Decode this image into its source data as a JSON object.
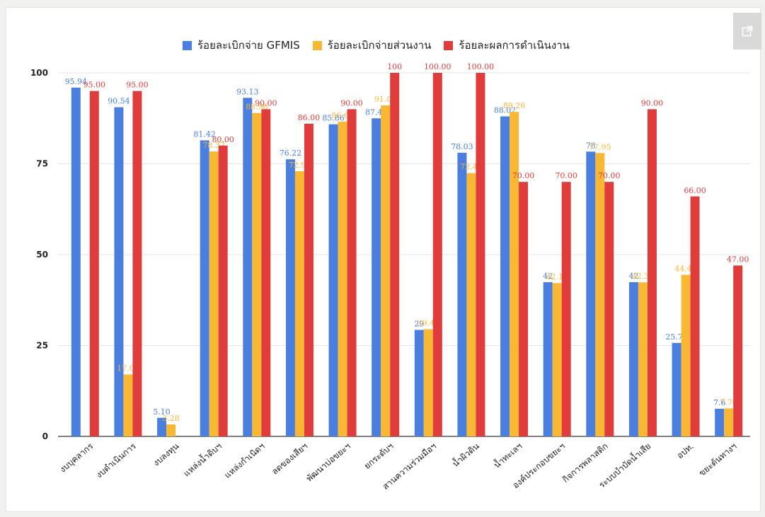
{
  "chart_data": {
    "type": "bar",
    "categories": [
      "งบบุคลากร",
      "งบดำเนินการ",
      "งบลงทุน",
      "แหล่งน้ำดิบฯ",
      "แหล่งกำเนิดฯ",
      "ลดของเสียฯ",
      "พัฒนาบ่อขยะฯ",
      "ยกระดับฯ",
      "สานความร่วมมือฯ",
      "น้ำผิวดิน",
      "น้ำทะเลฯ",
      "องค์ประกอบขยะฯ",
      "กิจการพลาสติก",
      "ระบบบำบัดน้ำเสีย",
      "อปท.",
      "ขยะต้นทางฯ"
    ],
    "series": [
      {
        "name": "ร้อยละเบิกจ่าย GFMIS",
        "color": "#4a7fe0",
        "values": [
          95.94,
          90.54,
          5.1,
          81.42,
          93.13,
          76.22,
          85.86,
          87.49,
          29.29,
          78.03,
          88.02,
          42.42,
          78.33,
          42.42,
          25.71,
          7.6
        ],
        "labels": [
          "95.94",
          "90.54",
          "5.10",
          "81.42",
          "93.13",
          "76.22",
          "85.86",
          "87.49",
          "29",
          "78.03",
          "88.02",
          "42",
          "78",
          "42",
          "25.71",
          "7.6"
        ]
      },
      {
        "name": "ร้อยละเบิกจ่ายส่วนงาน",
        "color": "#f8b834",
        "values": [
          null,
          17.04,
          3.28,
          78.37,
          88.96,
          72.94,
          86.6,
          91.05,
          29.49,
          72.43,
          89.26,
          42.17,
          77.95,
          42.38,
          44.44,
          7.7
        ],
        "labels": [
          "",
          "17.04",
          "3.28",
          "78.37",
          "88.96",
          "72.94",
          "86.60",
          "91.05",
          "29.49",
          "72.43",
          "89.26",
          "42.17",
          "77.95",
          "42.38",
          "44.44",
          "7.70"
        ]
      },
      {
        "name": "ร้อยละผลการดำเนินงาน",
        "color": "#e03c3c",
        "values": [
          95.0,
          95.0,
          null,
          80.0,
          90.0,
          86.0,
          90.0,
          100.0,
          100.0,
          100.0,
          70.0,
          70.0,
          70.0,
          90.0,
          66.0,
          47.0
        ],
        "labels": [
          "95.00",
          "95.00",
          "",
          "80.00",
          "90.00",
          "86.00",
          "90.00",
          "100",
          "100.00",
          "100.00",
          "70.00",
          "70.00",
          "70.00",
          "90.00",
          "66.00",
          "47.00"
        ]
      }
    ],
    "yticks": [
      0,
      25,
      50,
      75,
      100
    ],
    "ylim": [
      0,
      100
    ],
    "legend_position": "top-center",
    "grid": true
  },
  "icons": {
    "expand": "external-link-icon"
  }
}
